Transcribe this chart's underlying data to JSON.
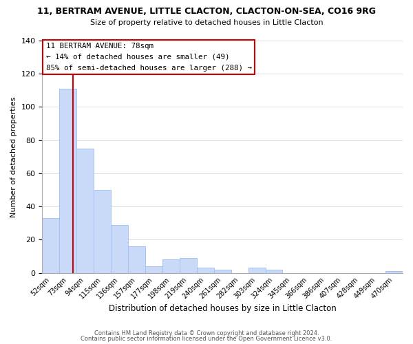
{
  "title_line1": "11, BERTRAM AVENUE, LITTLE CLACTON, CLACTON-ON-SEA, CO16 9RG",
  "title_line2": "Size of property relative to detached houses in Little Clacton",
  "xlabel": "Distribution of detached houses by size in Little Clacton",
  "ylabel": "Number of detached properties",
  "bar_labels": [
    "52sqm",
    "73sqm",
    "94sqm",
    "115sqm",
    "136sqm",
    "157sqm",
    "177sqm",
    "198sqm",
    "219sqm",
    "240sqm",
    "261sqm",
    "282sqm",
    "303sqm",
    "324sqm",
    "345sqm",
    "366sqm",
    "386sqm",
    "407sqm",
    "428sqm",
    "449sqm",
    "470sqm"
  ],
  "bar_heights": [
    33,
    111,
    75,
    50,
    29,
    16,
    4,
    8,
    9,
    3,
    2,
    0,
    3,
    2,
    0,
    0,
    0,
    0,
    0,
    0,
    1
  ],
  "bar_color": "#c9daf8",
  "bar_edge_color": "#a4c2f4",
  "ylim": [
    0,
    140
  ],
  "yticks": [
    0,
    20,
    40,
    60,
    80,
    100,
    120,
    140
  ],
  "annotation_title": "11 BERTRAM AVENUE: 78sqm",
  "annotation_line2": "← 14% of detached houses are smaller (49)",
  "annotation_line3": "85% of semi-detached houses are larger (288) →",
  "annotation_box_color": "#ffffff",
  "annotation_box_edge": "#cc0000",
  "property_line_color": "#cc0000",
  "property_line_x": 1.3,
  "footer_line1": "Contains HM Land Registry data © Crown copyright and database right 2024.",
  "footer_line2": "Contains public sector information licensed under the Open Government Licence v3.0."
}
